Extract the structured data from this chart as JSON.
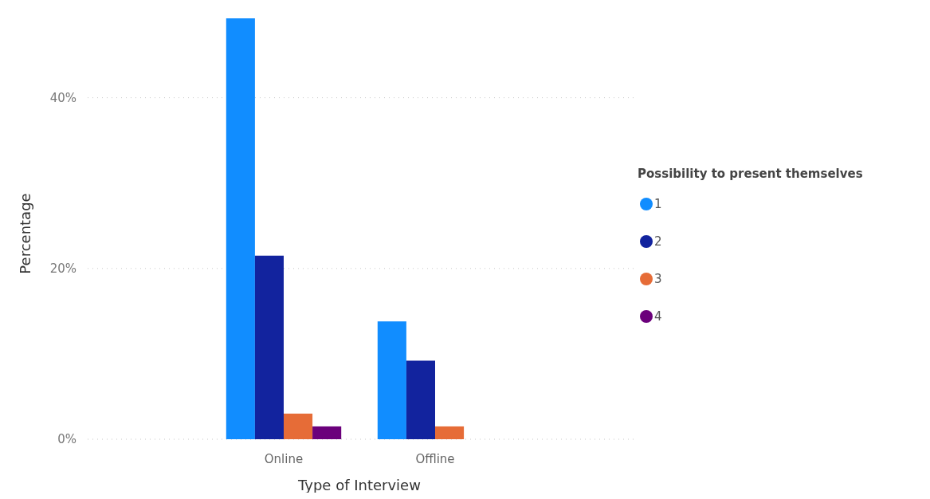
{
  "chart_data": {
    "type": "bar",
    "xlabel": "Type of Interview",
    "ylabel": "Percentage",
    "legend_title": "Possibility to present themselves",
    "categories": [
      "Online",
      "Offline"
    ],
    "series": [
      {
        "name": "1",
        "color": "#118dff",
        "values": [
          49.3,
          13.8
        ]
      },
      {
        "name": "2",
        "color": "#12239e",
        "values": [
          21.5,
          9.2
        ]
      },
      {
        "name": "3",
        "color": "#e66c37",
        "values": [
          3.0,
          1.5
        ]
      },
      {
        "name": "4",
        "color": "#6b007b",
        "values": [
          1.5,
          null
        ]
      }
    ],
    "ylim": [
      0,
      49.3
    ],
    "yticks": [
      {
        "value": 0,
        "label": "0%"
      },
      {
        "value": 20,
        "label": "20%"
      },
      {
        "value": 40,
        "label": "40%"
      }
    ],
    "grid": "y",
    "legend": "right"
  }
}
